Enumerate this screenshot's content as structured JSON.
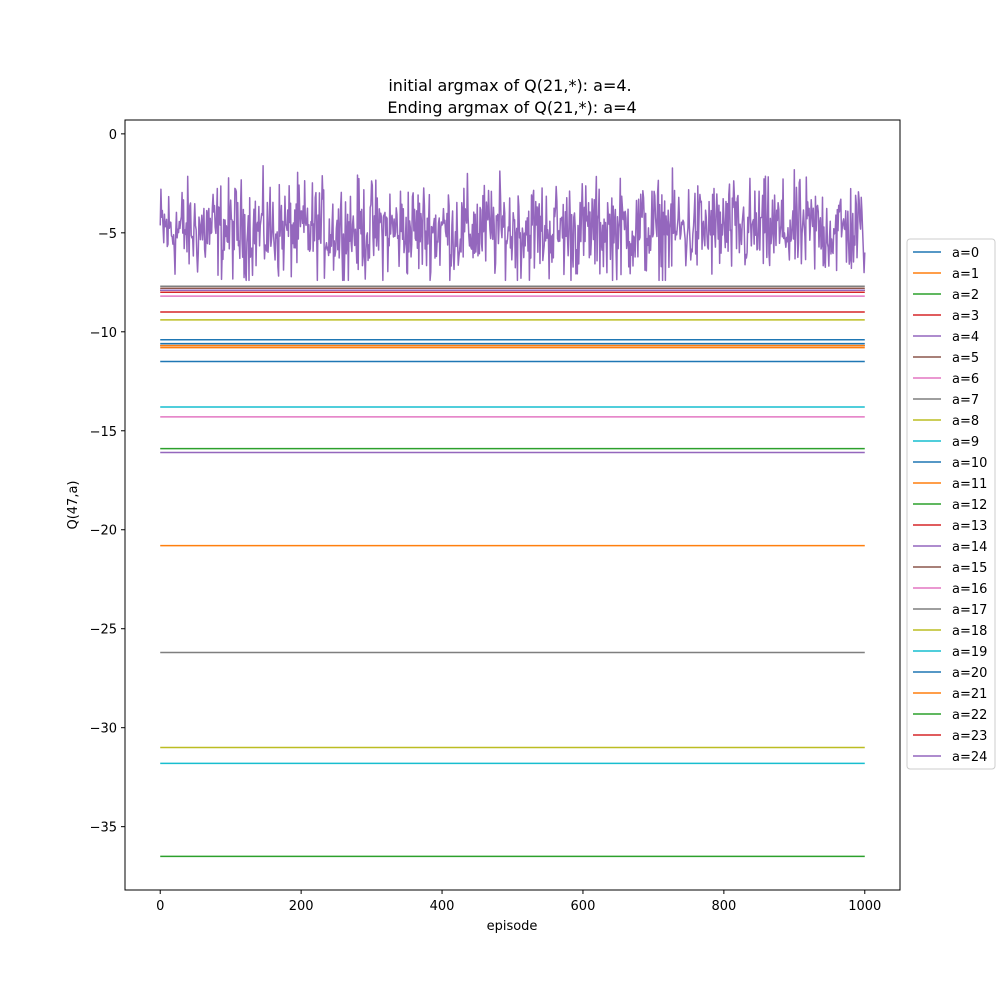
{
  "chart_data": {
    "type": "line",
    "title": [
      "initial argmax of Q(21,*): a=4.",
      "Ending argmax of Q(21,*): a=4"
    ],
    "xlabel": "episode",
    "ylabel": "Q(47,a)",
    "xlim": [
      -50,
      1050
    ],
    "ylim": [
      -38.2,
      0.7
    ],
    "xticks": [
      0,
      200,
      400,
      600,
      800,
      1000
    ],
    "yticks": [
      0,
      -5,
      -10,
      -15,
      -20,
      -25,
      -30,
      -35
    ],
    "grid": false,
    "legend_placement": "center-right-outside",
    "x_range": [
      0,
      1000
    ],
    "series": [
      {
        "name": "a=0",
        "color": "#1f77b4",
        "value": -10.4
      },
      {
        "name": "a=1",
        "color": "#ff7f0e",
        "value": -10.8
      },
      {
        "name": "a=2",
        "color": "#2ca02c",
        "value": -36.5
      },
      {
        "name": "a=3",
        "color": "#d62728",
        "value": -9.0
      },
      {
        "name": "a=4",
        "color": "#9467bd",
        "noisy": true,
        "mean": -4.85,
        "min": -7.4,
        "max": -1.1
      },
      {
        "name": "a=5",
        "color": "#8c564b",
        "value": -7.8
      },
      {
        "name": "a=6",
        "color": "#e377c2",
        "value": -8.2
      },
      {
        "name": "a=7",
        "color": "#7f7f7f",
        "value": -26.2
      },
      {
        "name": "a=8",
        "color": "#bcbd22",
        "value": -31.0
      },
      {
        "name": "a=9",
        "color": "#17becf",
        "value": -31.8
      },
      {
        "name": "a=10",
        "color": "#1f77b4",
        "value": -11.5
      },
      {
        "name": "a=11",
        "color": "#ff7f0e",
        "value": -20.8
      },
      {
        "name": "a=12",
        "color": "#2ca02c",
        "value": -15.9
      },
      {
        "name": "a=13",
        "color": "#d62728",
        "value": -8.0
      },
      {
        "name": "a=14",
        "color": "#9467bd",
        "value": -16.1
      },
      {
        "name": "a=15",
        "color": "#8c564b",
        "value": -10.7
      },
      {
        "name": "a=16",
        "color": "#e377c2",
        "value": -14.3
      },
      {
        "name": "a=17",
        "color": "#7f7f7f",
        "value": -7.7
      },
      {
        "name": "a=18",
        "color": "#bcbd22",
        "value": -9.4
      },
      {
        "name": "a=19",
        "color": "#17becf",
        "value": -13.8
      },
      {
        "name": "a=20",
        "color": "#1f77b4",
        "value": -10.6
      },
      {
        "name": "a=21",
        "color": "#ff7f0e",
        "value": -10.7
      },
      {
        "name": "a=22",
        "color": "#2ca02c",
        "value": -7.9
      },
      {
        "name": "a=23",
        "color": "#d62728",
        "value": -7.9
      },
      {
        "name": "a=24",
        "color": "#9467bd",
        "value": -7.9
      }
    ]
  }
}
